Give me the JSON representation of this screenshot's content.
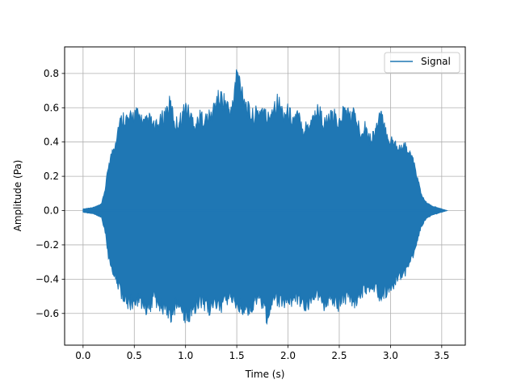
{
  "chart_data": {
    "type": "line",
    "title": "",
    "xlabel": "Time (s)",
    "ylabel": "Amplitude (Pa)",
    "xlim": [
      -0.18,
      3.73
    ],
    "ylim": [
      -0.785,
      0.955
    ],
    "xticks": [
      0.0,
      0.5,
      1.0,
      1.5,
      2.0,
      2.5,
      3.0,
      3.5
    ],
    "xtick_labels": [
      "0.0",
      "0.5",
      "1.0",
      "1.5",
      "2.0",
      "2.5",
      "3.0",
      "3.5"
    ],
    "yticks": [
      -0.6,
      -0.4,
      -0.2,
      0.0,
      0.2,
      0.4,
      0.6,
      0.8
    ],
    "ytick_labels": [
      "−0.6",
      "−0.4",
      "−0.2",
      "0.0",
      "0.2",
      "0.4",
      "0.6",
      "0.8"
    ],
    "grid": true,
    "legend": {
      "position": "top-right",
      "entries": [
        "Signal"
      ]
    },
    "series": [
      {
        "name": "Signal",
        "color": "#1f77b4",
        "t": [
          0.0,
          0.1,
          0.18,
          0.22,
          0.25,
          0.3,
          0.35,
          0.4,
          0.45,
          0.5,
          0.55,
          0.6,
          0.65,
          0.7,
          0.75,
          0.8,
          0.85,
          0.9,
          0.95,
          1.0,
          1.05,
          1.1,
          1.15,
          1.2,
          1.25,
          1.3,
          1.35,
          1.4,
          1.45,
          1.5,
          1.55,
          1.6,
          1.65,
          1.7,
          1.75,
          1.8,
          1.85,
          1.9,
          1.95,
          2.0,
          2.05,
          2.1,
          2.15,
          2.2,
          2.25,
          2.3,
          2.35,
          2.4,
          2.45,
          2.5,
          2.55,
          2.6,
          2.65,
          2.7,
          2.75,
          2.8,
          2.85,
          2.9,
          2.95,
          3.0,
          3.05,
          3.1,
          3.15,
          3.2,
          3.25,
          3.3,
          3.35,
          3.4,
          3.45,
          3.5,
          3.55
        ],
        "upper": [
          0.01,
          0.02,
          0.04,
          0.15,
          0.3,
          0.4,
          0.55,
          0.6,
          0.57,
          0.62,
          0.6,
          0.55,
          0.58,
          0.52,
          0.56,
          0.62,
          0.68,
          0.55,
          0.58,
          0.66,
          0.6,
          0.55,
          0.6,
          0.58,
          0.6,
          0.7,
          0.72,
          0.68,
          0.62,
          0.88,
          0.78,
          0.65,
          0.6,
          0.62,
          0.65,
          0.58,
          0.66,
          0.7,
          0.62,
          0.63,
          0.58,
          0.6,
          0.52,
          0.55,
          0.6,
          0.65,
          0.55,
          0.58,
          0.6,
          0.55,
          0.65,
          0.6,
          0.62,
          0.5,
          0.55,
          0.45,
          0.5,
          0.62,
          0.5,
          0.45,
          0.42,
          0.4,
          0.4,
          0.35,
          0.25,
          0.1,
          0.05,
          0.03,
          0.02,
          0.01,
          0.0
        ],
        "lower": [
          -0.01,
          -0.02,
          -0.04,
          -0.15,
          -0.3,
          -0.42,
          -0.5,
          -0.55,
          -0.6,
          -0.58,
          -0.55,
          -0.62,
          -0.6,
          -0.56,
          -0.6,
          -0.65,
          -0.7,
          -0.6,
          -0.58,
          -0.68,
          -0.65,
          -0.6,
          -0.58,
          -0.6,
          -0.62,
          -0.58,
          -0.6,
          -0.56,
          -0.55,
          -0.6,
          -0.62,
          -0.65,
          -0.6,
          -0.55,
          -0.58,
          -0.7,
          -0.6,
          -0.56,
          -0.58,
          -0.6,
          -0.55,
          -0.56,
          -0.58,
          -0.6,
          -0.58,
          -0.55,
          -0.6,
          -0.56,
          -0.58,
          -0.6,
          -0.55,
          -0.56,
          -0.58,
          -0.52,
          -0.5,
          -0.48,
          -0.5,
          -0.55,
          -0.52,
          -0.5,
          -0.45,
          -0.42,
          -0.38,
          -0.32,
          -0.22,
          -0.1,
          -0.05,
          -0.03,
          -0.02,
          -0.01,
          0.0
        ]
      }
    ]
  }
}
